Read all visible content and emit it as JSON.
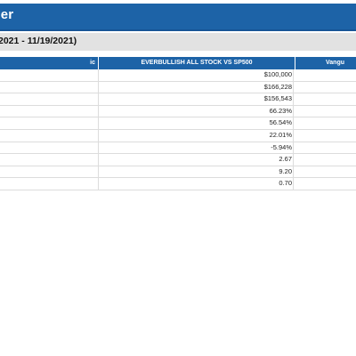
{
  "header": {
    "title": "zer",
    "period": "2021 - 11/19/2021)"
  },
  "table": {
    "columns": {
      "metric": "ic",
      "portfolio": "EVERBULLISH ALL STOCK VS SP500",
      "benchmark": "Vangu"
    },
    "rows": [
      {
        "value": "$100,000"
      },
      {
        "value": "$166,228"
      },
      {
        "value": "$156,543"
      },
      {
        "value": "66.23%"
      },
      {
        "value": "56.54%"
      },
      {
        "value": "22.01%"
      },
      {
        "value": "-5.94%"
      },
      {
        "value": "2.67"
      },
      {
        "value": "9.20"
      },
      {
        "value": "0.70"
      }
    ]
  },
  "colors": {
    "header_blue": "#1d63a7",
    "period_gray": "#e2e2e2",
    "row_border": "#dcdcdc"
  }
}
